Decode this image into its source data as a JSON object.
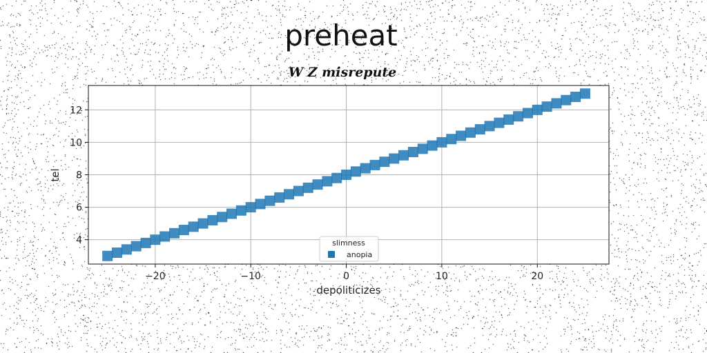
{
  "chart_data": {
    "type": "scatter",
    "title": "preheat",
    "subtitle": "W Z misrepute",
    "xlabel": "depoliticizes",
    "ylabel": "tel",
    "xlim": [
      -27,
      27.5
    ],
    "ylim": [
      2.5,
      13.5
    ],
    "xticks": [
      -20,
      -10,
      0,
      10,
      20
    ],
    "xtick_labels": [
      "−20",
      "−10",
      "0",
      "10",
      "20"
    ],
    "yticks": [
      4,
      6,
      8,
      10,
      12
    ],
    "grid": true,
    "legend": {
      "title": "slimness",
      "placement": "lower-center"
    },
    "series": [
      {
        "name": "anopia",
        "color": "#1f77b4",
        "marker": "square",
        "x_start": -25,
        "x_end": 25,
        "x_step": 1,
        "slope": 0.2,
        "intercept": 8.0
      }
    ]
  }
}
